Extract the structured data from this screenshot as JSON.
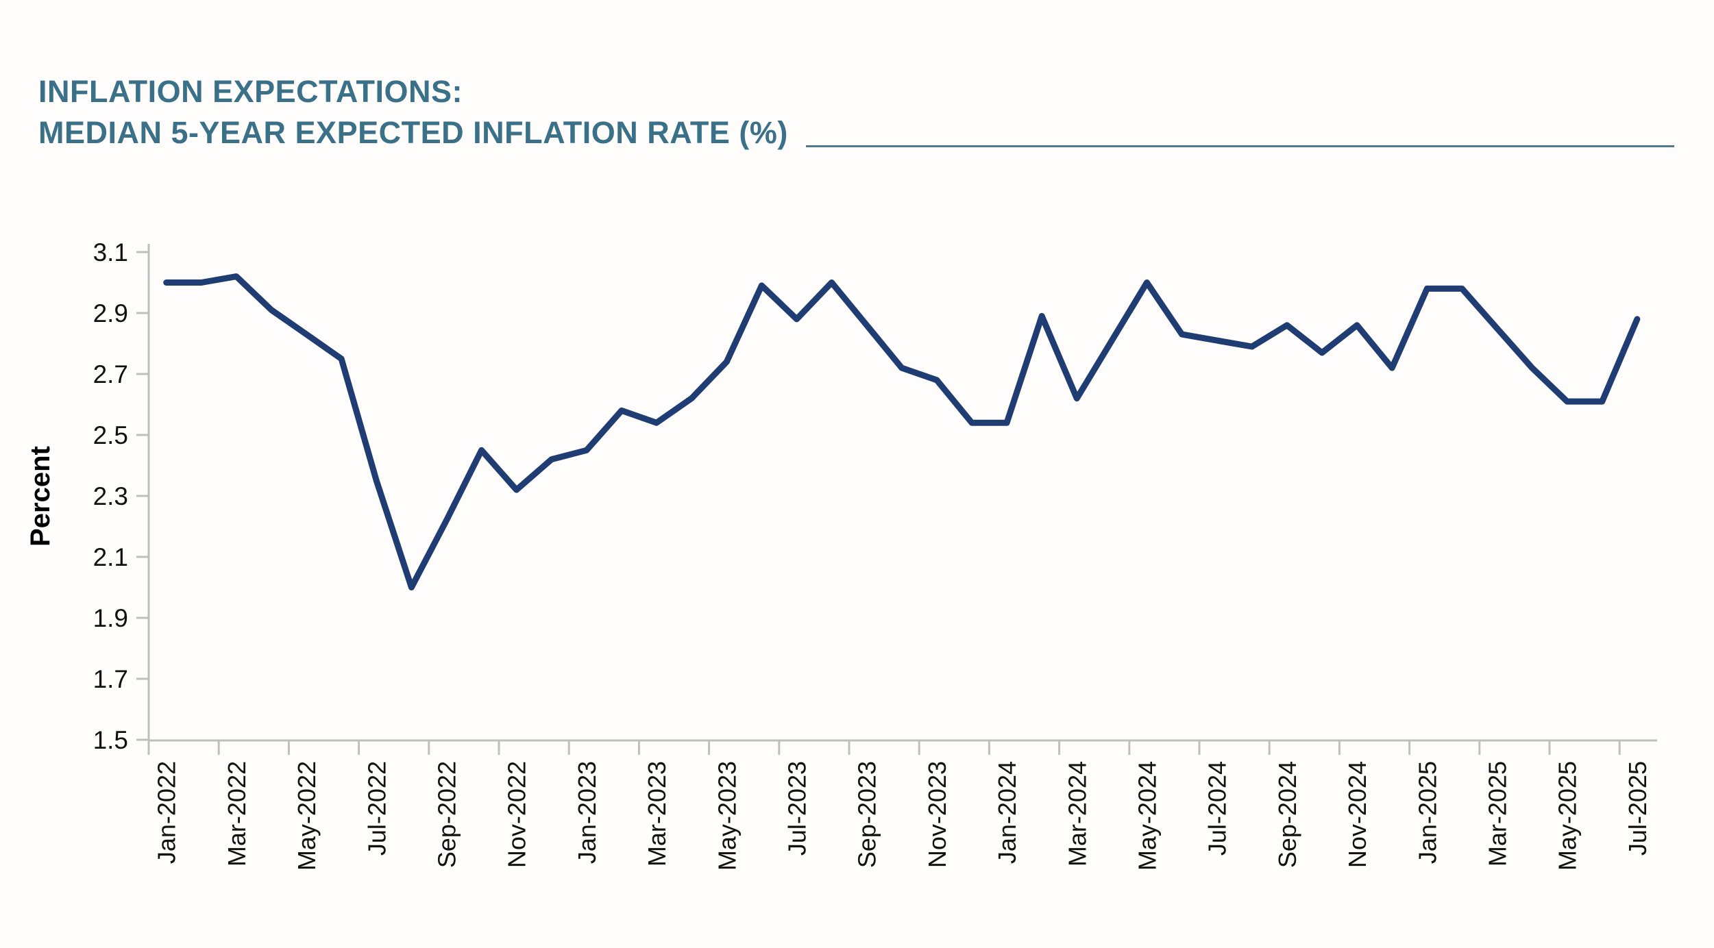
{
  "page": {
    "background": "#FFFDFC"
  },
  "header": {
    "title_line1": "INFLATION EXPECTATIONS:",
    "title_line2": "MEDIAN 5-YEAR EXPECTED INFLATION RATE (%)",
    "title_color": "#3A7188",
    "rule_color": "#51798D"
  },
  "chart_data": {
    "type": "line",
    "title": "INFLATION EXPECTATIONS: MEDIAN 5-YEAR EXPECTED INFLATION RATE (%)",
    "xlabel": "",
    "ylabel": "Percent",
    "ylim": [
      1.5,
      3.1
    ],
    "ytick_step": 0.2,
    "grid": false,
    "legend_position": "none",
    "line_color": "#1F3C73",
    "axis_color": "#BFBFBF",
    "tick_text_color": "#111111",
    "ytick_labels": [
      "3.1",
      "2.9",
      "2.7",
      "2.5",
      "2.3",
      "2.1",
      "1.9",
      "1.7",
      "1.5"
    ],
    "xtick_labels": [
      "Jan-2022",
      "Mar-2022",
      "May-2022",
      "Jul-2022",
      "Sep-2022",
      "Nov-2022",
      "Jan-2023",
      "Mar-2023",
      "May-2023",
      "Jul-2023",
      "Sep-2023",
      "Nov-2023",
      "Jan-2024",
      "Mar-2024",
      "May-2024",
      "Jul-2024",
      "Sep-2024",
      "Nov-2024",
      "Jan-2025",
      "Mar-2025",
      "May-2025",
      "Jul-2025"
    ],
    "categories": [
      "Jan-2022",
      "Feb-2022",
      "Mar-2022",
      "Apr-2022",
      "May-2022",
      "Jun-2022",
      "Jul-2022",
      "Aug-2022",
      "Sep-2022",
      "Oct-2022",
      "Nov-2022",
      "Dec-2022",
      "Jan-2023",
      "Feb-2023",
      "Mar-2023",
      "Apr-2023",
      "May-2023",
      "Jun-2023",
      "Jul-2023",
      "Aug-2023",
      "Sep-2023",
      "Oct-2023",
      "Nov-2023",
      "Dec-2023",
      "Jan-2024",
      "Feb-2024",
      "Mar-2024",
      "Apr-2024",
      "May-2024",
      "Jun-2024",
      "Jul-2024",
      "Aug-2024",
      "Sep-2024",
      "Oct-2024",
      "Nov-2024",
      "Dec-2024",
      "Jan-2025",
      "Feb-2025",
      "Mar-2025",
      "Apr-2025",
      "May-2025",
      "Jun-2025",
      "Jul-2025"
    ],
    "values": [
      3.0,
      3.0,
      3.02,
      2.91,
      2.83,
      2.75,
      2.35,
      2.0,
      2.22,
      2.45,
      2.32,
      2.42,
      2.45,
      2.58,
      2.54,
      2.62,
      2.74,
      2.99,
      2.88,
      3.0,
      2.86,
      2.72,
      2.68,
      2.54,
      2.54,
      2.89,
      2.62,
      2.81,
      3.0,
      2.83,
      2.81,
      2.79,
      2.86,
      2.77,
      2.86,
      2.72,
      2.98,
      2.98,
      2.85,
      2.72,
      2.61,
      2.61,
      2.88
    ]
  }
}
